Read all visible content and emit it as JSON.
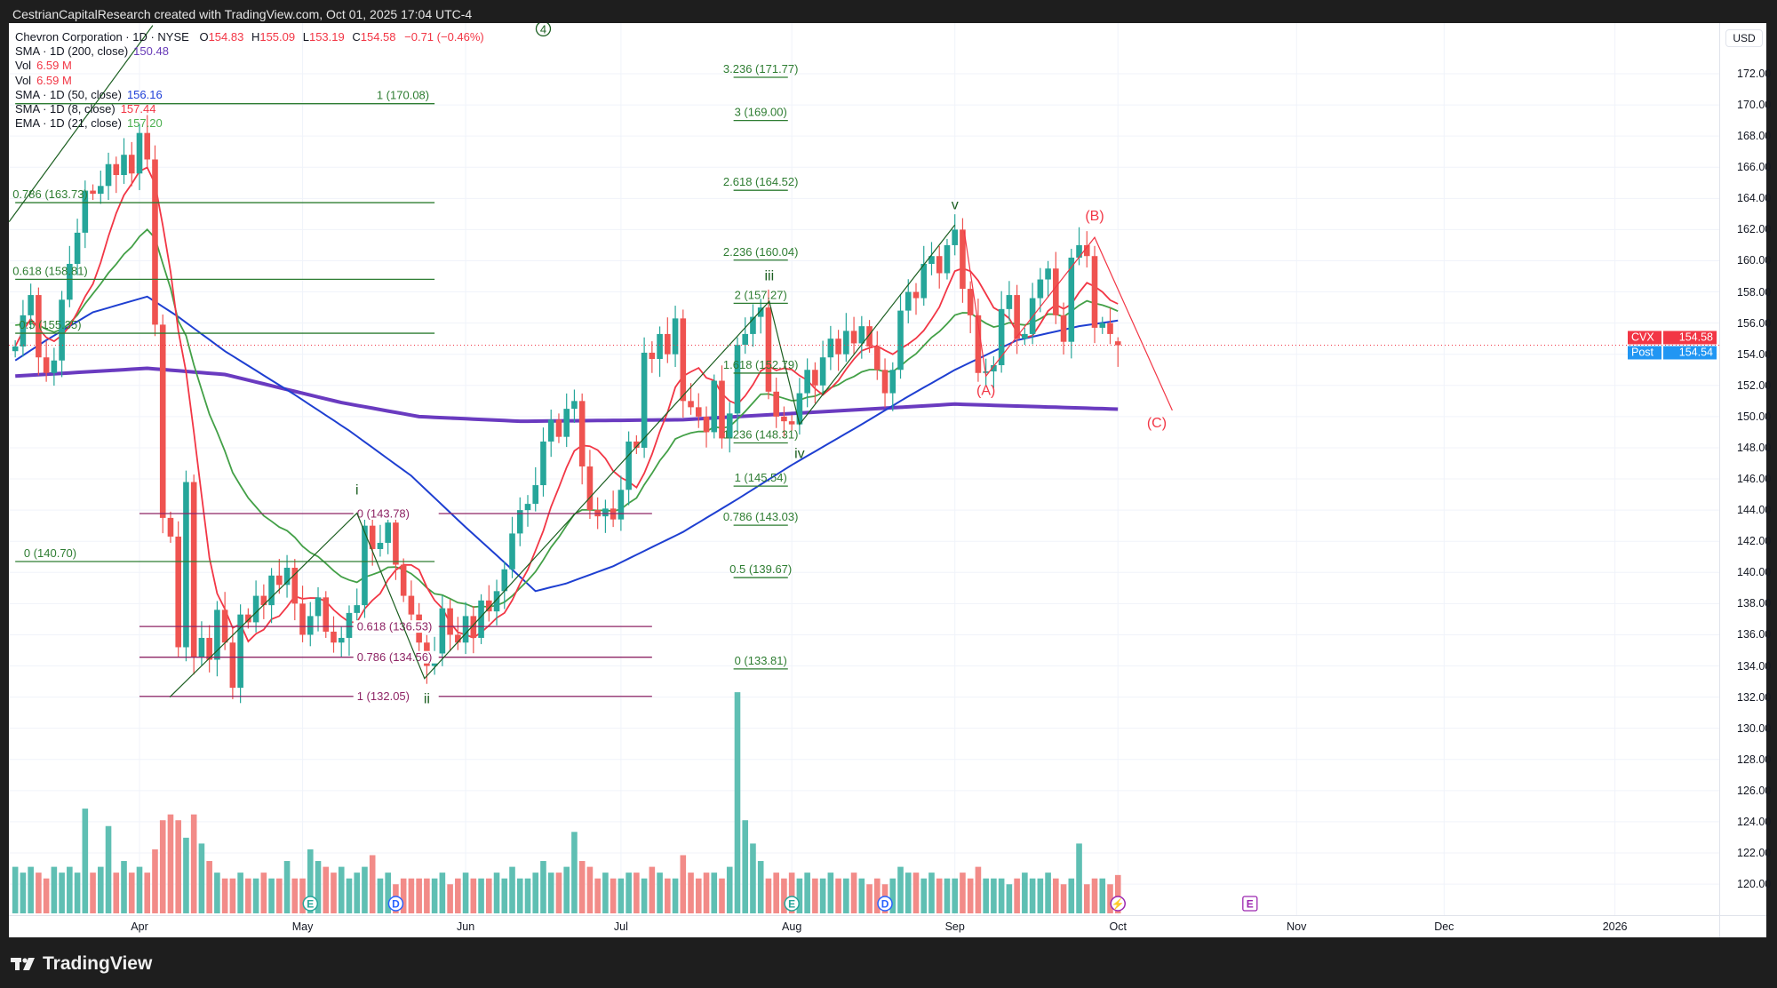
{
  "header": {
    "attribution": "CestrianCapitalResearch created with TradingView.com, Oct 01, 2025 17:04 UTC-4"
  },
  "legend": {
    "symbol": "Chevron Corporation · 1D · NYSE",
    "o_label": "O",
    "o": "154.83",
    "h_label": "H",
    "h": "155.09",
    "l_label": "L",
    "l": "153.19",
    "c_label": "C",
    "c": "154.58",
    "change": "−0.71 (−0.46%)",
    "indicators": [
      {
        "label": "SMA · 1D (200, close)",
        "value": "150.48",
        "color": "#673ab7"
      },
      {
        "label": "Vol",
        "value": "6.59 M",
        "color": "#f23645"
      },
      {
        "label": "Vol",
        "value": "6.59 M",
        "color": "#f23645"
      },
      {
        "label": "SMA · 1D (50, close)",
        "value": "156.16",
        "color": "#2040d8"
      },
      {
        "label": "SMA · 1D (8, close)",
        "value": "157.44",
        "color": "#f23645"
      },
      {
        "label": "EMA · 1D (21, close)",
        "value": "157.20",
        "color": "#4caf50"
      }
    ]
  },
  "price_axis": {
    "currency": "USD",
    "ticks": [
      "172.00",
      "170.00",
      "168.00",
      "166.00",
      "164.00",
      "162.00",
      "160.00",
      "158.00",
      "156.00",
      "154.00",
      "152.00",
      "150.00",
      "148.00",
      "146.00",
      "144.00",
      "142.00",
      "140.00",
      "138.00",
      "136.00",
      "134.00",
      "132.00",
      "130.00",
      "128.00",
      "126.00",
      "124.00",
      "122.00",
      "120.00"
    ],
    "last_label": {
      "name": "CVX",
      "value": "154.58",
      "color": "#f23645"
    },
    "post_label": {
      "name": "Post",
      "value": "154.54",
      "color": "#2196f3"
    }
  },
  "time_axis": {
    "labels": [
      {
        "text": "Apr",
        "i": 16
      },
      {
        "text": "May",
        "i": 37
      },
      {
        "text": "Jun",
        "i": 58
      },
      {
        "text": "Jul",
        "i": 78
      },
      {
        "text": "Aug",
        "i": 100
      },
      {
        "text": "Sep",
        "i": 121
      },
      {
        "text": "Oct",
        "i": 142
      },
      {
        "text": "Nov",
        "i": 165
      },
      {
        "text": "Dec",
        "i": 184
      },
      {
        "text": "2026",
        "i": 206
      }
    ]
  },
  "chart_data": {
    "type": "candlestick",
    "symbol": "CVX",
    "ylim": [
      118.5,
      173.5
    ],
    "colors": {
      "up": "#26a69a",
      "down": "#ef5350",
      "vol_up": "#5fbfb3",
      "vol_down": "#f28b88",
      "sma8": "#f23645",
      "ema21": "#43a047",
      "sma50": "#1e3fd1",
      "sma200": "#6a3bc0"
    },
    "closes": [
      154.5,
      156.5,
      157.8,
      153.8,
      152.8,
      153.6,
      157.5,
      159.8,
      161.8,
      164.5,
      164.3,
      164.8,
      166.2,
      165.5,
      166.8,
      165.6,
      168.2,
      166.5,
      155.9,
      143.5,
      142.3,
      135.2,
      145.8,
      134.6,
      135.8,
      134.4,
      137.6,
      135.5,
      132.6,
      137.3,
      136.8,
      138.5,
      137.9,
      139.8,
      139.2,
      140.3,
      138.0,
      136.0,
      137.2,
      138.4,
      136.2,
      135.5,
      135.8,
      137.4,
      137.9,
      143.0,
      141.5,
      141.9,
      143.2,
      140.5,
      138.5,
      137.3,
      135.5,
      134.0,
      134.8,
      137.7,
      136.0,
      135.5,
      137.2,
      135.8,
      138.2,
      137.5,
      138.8,
      140.2,
      142.5,
      144.0,
      144.4,
      145.6,
      148.4,
      149.8,
      148.7,
      150.5,
      151.0,
      146.8,
      144.0,
      143.6,
      144.1,
      143.4,
      145.3,
      148.4,
      148.0,
      154.1,
      153.7,
      155.3,
      154.0,
      156.3,
      151.0,
      150.6,
      150.0,
      149.0,
      152.3,
      148.6,
      150.2,
      154.6,
      155.3,
      156.4,
      157.0,
      151.6,
      150.0,
      149.7,
      149.5,
      151.5,
      153.0,
      152.0,
      153.8,
      155.0,
      154.0,
      155.5,
      154.7,
      155.8,
      154.5,
      153.0,
      151.5,
      153.0,
      156.8,
      158.0,
      157.6,
      159.8,
      160.3,
      159.2,
      161.0,
      162.0,
      158.2,
      156.5,
      152.8,
      152.9,
      153.3,
      156.9,
      157.8,
      155.0,
      155.3,
      157.6,
      158.8,
      159.5,
      156.5,
      154.8,
      160.2,
      161.0,
      160.3,
      155.7,
      156.0,
      155.3,
      154.58
    ],
    "last_bar": {
      "o": 154.83,
      "h": 155.09,
      "l": 153.19,
      "c": 154.58
    },
    "volumes_m": [
      8,
      7,
      8,
      7,
      6,
      8,
      7,
      8,
      7,
      18,
      7,
      8,
      15,
      7,
      9,
      7,
      8,
      7,
      11,
      16,
      17,
      16,
      13,
      17,
      12,
      9,
      7,
      6,
      6,
      7,
      6,
      6,
      7,
      6,
      6,
      9,
      6,
      6,
      11,
      9,
      8,
      7,
      8,
      6,
      7,
      8,
      10,
      6,
      7,
      5,
      6,
      6,
      6,
      6,
      6,
      7,
      5,
      6,
      7,
      6,
      6,
      6,
      7,
      6,
      8,
      6,
      6,
      7,
      9,
      7,
      7,
      8,
      14,
      9,
      8,
      6,
      7,
      6,
      6,
      7,
      7,
      6,
      8,
      7,
      6,
      6,
      10,
      7,
      6,
      7,
      7,
      6,
      8,
      38,
      16,
      12,
      9,
      6,
      7,
      6,
      7,
      6,
      7,
      6,
      6,
      7,
      6,
      6,
      7,
      6,
      5,
      6,
      5,
      6,
      8,
      7,
      7,
      6,
      7,
      6,
      6,
      6,
      7,
      6,
      8,
      6,
      6,
      6,
      5,
      6,
      7,
      6,
      6,
      7,
      6,
      5,
      6,
      12,
      5,
      6,
      6,
      5,
      6.59
    ],
    "sma50": [
      [
        0,
        153.6
      ],
      [
        4,
        154.9
      ],
      [
        10,
        156.7
      ],
      [
        17,
        157.7
      ],
      [
        21,
        156.4
      ],
      [
        27,
        154.2
      ],
      [
        36,
        151.4
      ],
      [
        43,
        149.1
      ],
      [
        51,
        146.2
      ],
      [
        58,
        142.9
      ],
      [
        62,
        141.1
      ],
      [
        67,
        138.8
      ],
      [
        71,
        139.3
      ],
      [
        77,
        140.4
      ],
      [
        86,
        142.6
      ],
      [
        93,
        144.7
      ],
      [
        100,
        146.9
      ],
      [
        109,
        149.5
      ],
      [
        115,
        151.3
      ],
      [
        121,
        153.0
      ],
      [
        129,
        154.9
      ],
      [
        137,
        155.8
      ],
      [
        142,
        156.16
      ]
    ],
    "sma200": [
      [
        0,
        152.6
      ],
      [
        17,
        153.1
      ],
      [
        27,
        152.7
      ],
      [
        42,
        150.9
      ],
      [
        52,
        150.0
      ],
      [
        65,
        149.7
      ],
      [
        86,
        149.8
      ],
      [
        121,
        150.8
      ],
      [
        142,
        150.48
      ]
    ],
    "fib_sets": [
      {
        "color": "#2e7d32",
        "from": 0,
        "to": 54,
        "label_at": 4.5,
        "label_pos": "above",
        "levels": [
          {
            "text": "1 (170.08)",
            "price": 170.08
          },
          {
            "text": "0.786 (163.73)",
            "price": 163.73
          },
          {
            "text": "0.618 (158.81)",
            "price": 158.81
          },
          {
            "text": "0.5 (155.35)",
            "price": 155.35
          },
          {
            "text": "0 (140.70)",
            "price": 140.7
          }
        ]
      },
      {
        "color": "#8e2465",
        "from": 16,
        "to": 82,
        "label_at": 44,
        "label_pos": "inline",
        "levels": [
          {
            "text": "0 (143.78)",
            "price": 143.78
          },
          {
            "text": "0.618 (136.53)",
            "price": 136.53
          },
          {
            "text": "0.786 (134.56)",
            "price": 134.56
          },
          {
            "text": "1 (132.05)",
            "price": 132.05
          }
        ]
      },
      {
        "color": "#2e7d32",
        "from": 92.5,
        "to": 99.5,
        "label_at": 96,
        "label_pos": "above",
        "levels": [
          {
            "text": "3.236 (171.77)",
            "price": 171.77
          },
          {
            "text": "3 (169.00)",
            "price": 169.0
          },
          {
            "text": "2.618 (164.52)",
            "price": 164.52
          },
          {
            "text": "2.236 (160.04)",
            "price": 160.04
          },
          {
            "text": "2 (157.27)",
            "price": 157.27
          },
          {
            "text": "1.618 (152.79)",
            "price": 152.79
          },
          {
            "text": "1.236 (148.31)",
            "price": 148.31
          },
          {
            "text": "1 (145.54)",
            "price": 145.54
          },
          {
            "text": "0.786 (143.03)",
            "price": 143.03
          },
          {
            "text": "0.5 (139.67)",
            "price": 139.67
          },
          {
            "text": "0 (133.81)",
            "price": 133.81
          }
        ]
      }
    ],
    "wave_paths": [
      {
        "color": "#1b5e20",
        "points": [
          [
            19.9,
            132.0
          ],
          [
            44,
            143.8
          ],
          [
            52.7,
            133.2
          ],
          [
            97.1,
            157.4
          ],
          [
            101,
            149.5
          ],
          [
            121,
            162.3
          ]
        ]
      },
      {
        "color": "#1b5e20",
        "points": [
          [
            -0.8,
            162.5
          ],
          [
            17.7,
            175.1
          ]
        ]
      },
      {
        "color": "#f23645",
        "points": [
          [
            122.2,
            161.9
          ],
          [
            125,
            152.6
          ],
          [
            139,
            161.5
          ],
          [
            149,
            150.4
          ]
        ]
      }
    ],
    "wave_labels": [
      {
        "text": "i",
        "i": 44,
        "price": 145.0,
        "color": "#1b5e20"
      },
      {
        "text": "ii",
        "i": 53,
        "price": 131.6,
        "color": "#1b5e20"
      },
      {
        "text": "iii",
        "i": 97.1,
        "price": 158.3,
        "color": "#1b5e20"
      },
      {
        "text": "iv",
        "i": 101,
        "price": 147.8,
        "color": "#1b5e20"
      },
      {
        "text": "v",
        "i": 121,
        "price": 163.3,
        "color": "#1b5e20"
      },
      {
        "text": "4",
        "i": 68,
        "price": 174.6,
        "color": "#1b5e20",
        "circled": true
      },
      {
        "text": "(A)",
        "i": 125,
        "price": 151.4,
        "color": "#f23645"
      },
      {
        "text": "(B)",
        "i": 139,
        "price": 162.6,
        "color": "#f23645"
      },
      {
        "text": "(C)",
        "i": 147,
        "price": 149.3,
        "color": "#f23645"
      }
    ],
    "events": [
      {
        "text": "E",
        "i": 38,
        "color": "#26a69a"
      },
      {
        "text": "D",
        "i": 49,
        "color": "#2962ff"
      },
      {
        "text": "E",
        "i": 100,
        "color": "#26a69a"
      },
      {
        "text": "D",
        "i": 112,
        "color": "#2962ff"
      },
      {
        "text": "⚡",
        "i": 142,
        "color": "#9c27b0"
      },
      {
        "text": "E",
        "i": 159,
        "color": "#9c27b0",
        "box": true
      }
    ]
  },
  "footer": {
    "brand": "TradingView"
  }
}
